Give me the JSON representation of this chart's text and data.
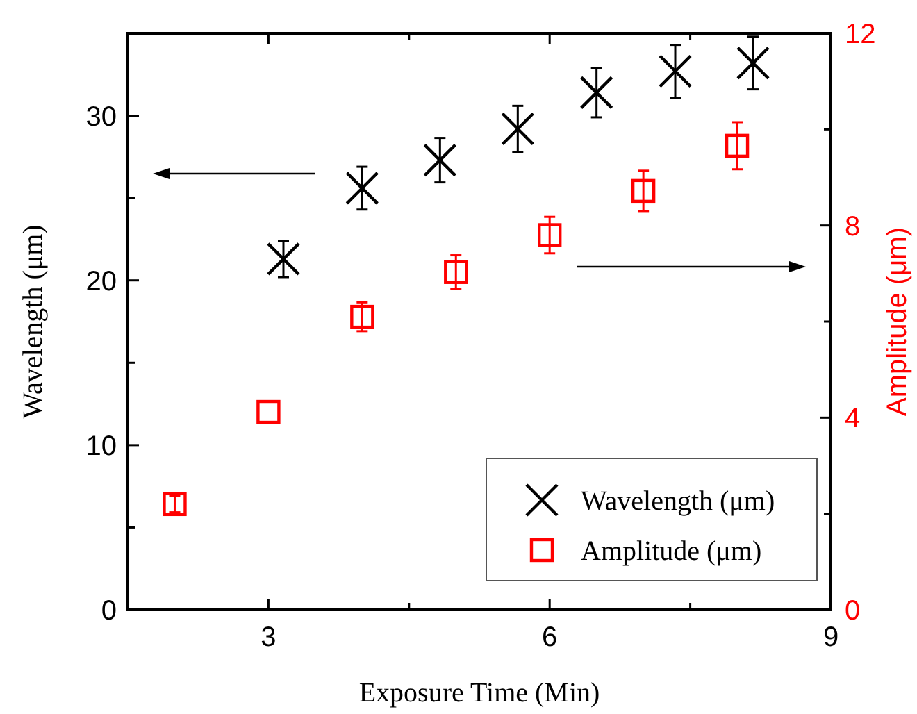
{
  "chart_data": {
    "type": "scatter",
    "xlabel": "Exposure Time (Min)",
    "ylabel": "Wavelength (μm)",
    "y2label": "Amplitude (μm)",
    "xlim": [
      1.5,
      9
    ],
    "xticks": [
      3,
      {
        "value": 4.5,
        "label": null
      },
      6,
      {
        "value": 7.5,
        "label": null
      },
      9
    ],
    "ylim": [
      0,
      35
    ],
    "yticks": [
      0,
      {
        "value": 5,
        "label": null
      },
      10,
      {
        "value": 15,
        "label": null
      },
      20,
      {
        "value": 25,
        "label": null
      },
      30
    ],
    "y2lim": [
      0,
      12
    ],
    "y2ticks": [
      0,
      {
        "value": 2,
        "label": null
      },
      4,
      {
        "value": 6,
        "label": null
      },
      8,
      {
        "value": 10,
        "label": null
      },
      12
    ],
    "legend": "bottom right",
    "series": [
      {
        "name": "Wavelength (μm)",
        "color": "#000000",
        "marker": "cross",
        "x": [
          3.16,
          4.0,
          4.83,
          5.66,
          6.5,
          7.34,
          8.17
        ],
        "values": [
          21.3,
          25.6,
          27.3,
          29.2,
          31.4,
          32.7,
          33.2
        ],
        "errors": [
          1.1,
          1.3,
          1.35,
          1.4,
          1.5,
          1.6,
          1.6
        ]
      },
      {
        "name": "Amplitude (μm)",
        "color": "#ff0000",
        "marker": "square",
        "axis": "y2",
        "x": [
          2,
          3,
          4,
          5,
          6,
          7,
          8
        ],
        "values": [
          2.2,
          4.12,
          6.1,
          7.03,
          7.8,
          8.72,
          9.66
        ],
        "errors": [
          0.17,
          null,
          0.3,
          0.35,
          0.38,
          0.42,
          0.49
        ]
      }
    ]
  }
}
